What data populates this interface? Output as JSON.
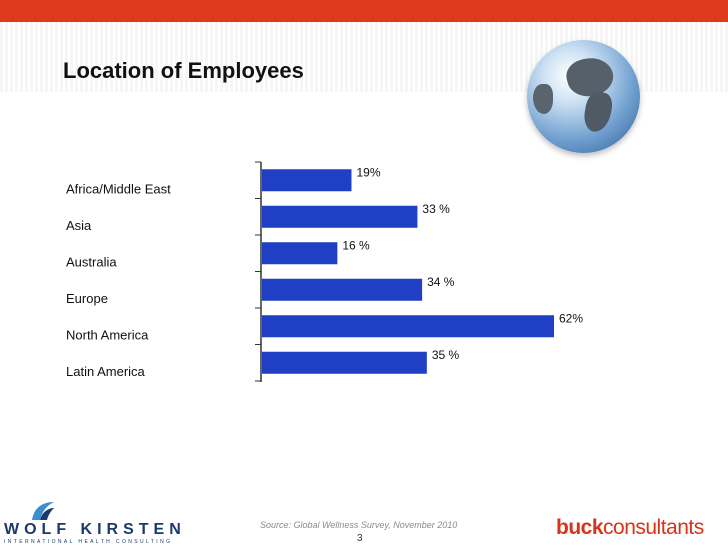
{
  "slide": {
    "title": "Location of Employees",
    "source": "Source: Global Wellness Survey, November 2010",
    "page_number": "3"
  },
  "logos": {
    "left_name": "WOLF KIRSTEN",
    "left_tagline": "INTERNATIONAL HEALTH CONSULTING",
    "right_bold": "buck",
    "right_light": "consultants"
  },
  "colors": {
    "bar": "#1f3fc4",
    "accent": "#e03a1e"
  },
  "chart_data": {
    "type": "bar",
    "orientation": "horizontal",
    "categories": [
      "Africa/Middle East",
      "Asia",
      "Australia",
      "Europe",
      "North America",
      "Latin America"
    ],
    "values": [
      19,
      33,
      16,
      34,
      62,
      35
    ],
    "value_labels": [
      "19%",
      "33 %",
      "16 %",
      "34 %",
      "62%",
      "35 %"
    ],
    "unit": "%",
    "xlim": [
      0,
      62
    ],
    "grid": false,
    "legend": "none"
  }
}
